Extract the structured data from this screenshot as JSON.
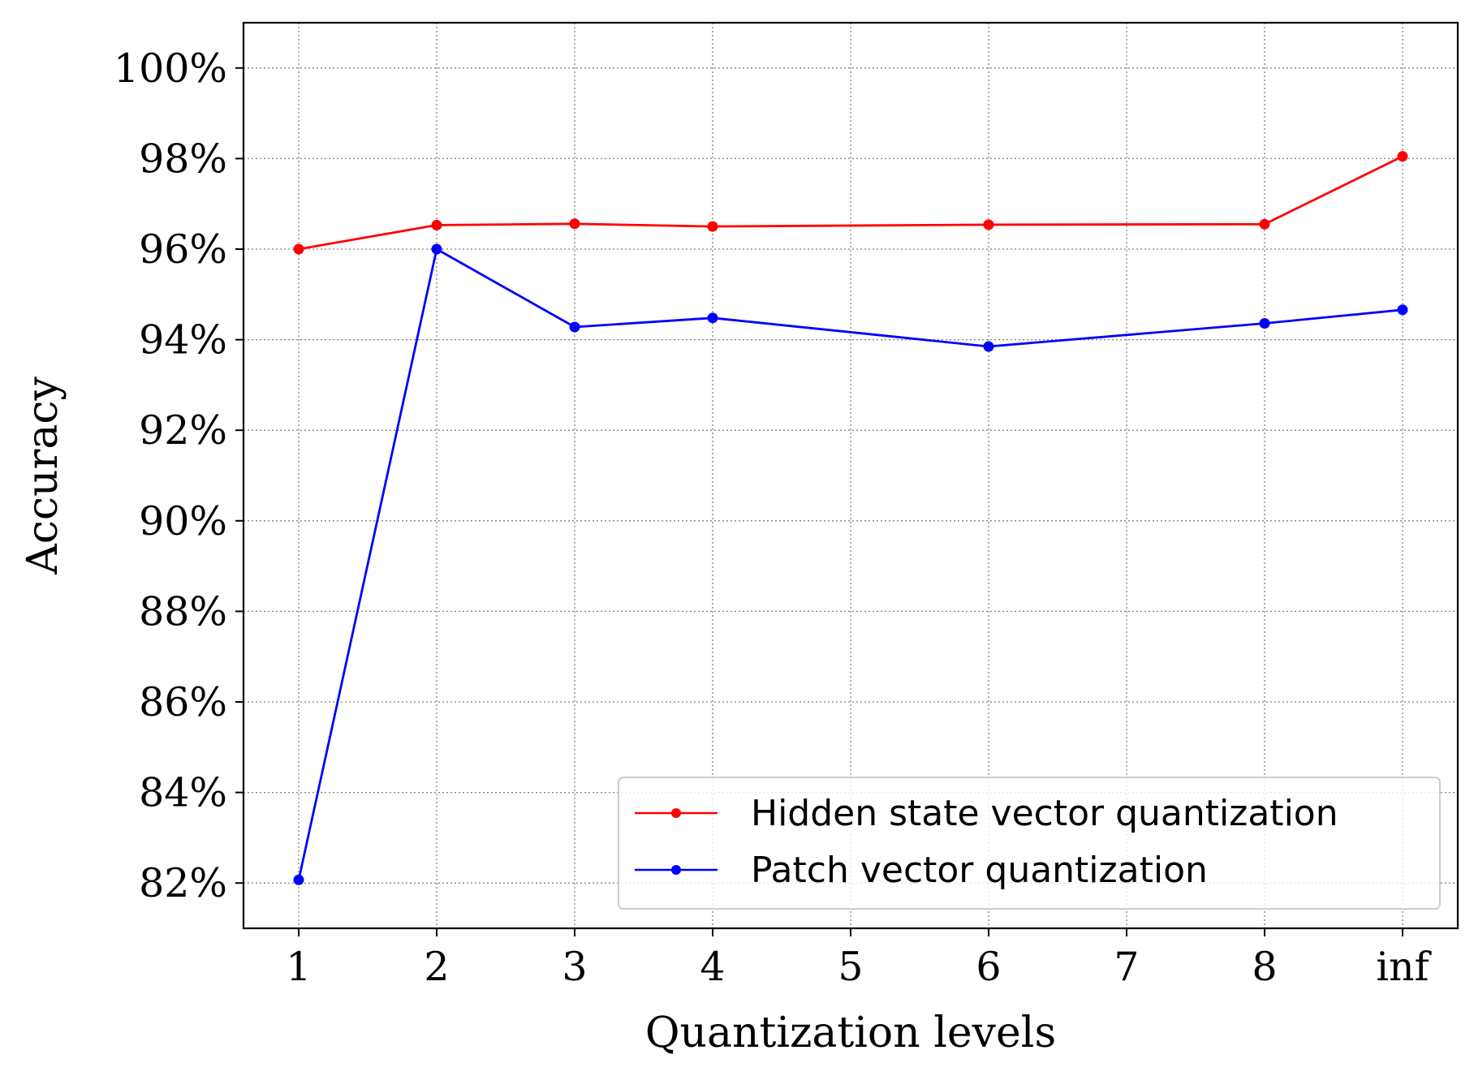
{
  "chart_data": {
    "type": "line",
    "xlabel": "Quantization levels",
    "ylabel": "Accuracy",
    "x_ticks": [
      "1",
      "2",
      "3",
      "4",
      "5",
      "6",
      "7",
      "8",
      "inf"
    ],
    "y_ticks": [
      "82%",
      "84%",
      "86%",
      "88%",
      "90%",
      "92%",
      "94%",
      "96%",
      "98%",
      "100%"
    ],
    "ylim": [
      81,
      101
    ],
    "xlim": [
      0.6,
      9.4
    ],
    "grid": true,
    "legend_position": "lower-right",
    "series": [
      {
        "name": "Hidden state vector quantization",
        "color": "#ff0000",
        "x": [
          1,
          2,
          3,
          4,
          6,
          8,
          "inf"
        ],
        "values": [
          96.0,
          96.53,
          96.56,
          96.5,
          96.54,
          96.55,
          98.05
        ]
      },
      {
        "name": "Patch vector quantization",
        "color": "#0000ff",
        "x": [
          1,
          2,
          3,
          4,
          6,
          8,
          "inf"
        ],
        "values": [
          82.07,
          96.0,
          94.28,
          94.48,
          93.85,
          94.36,
          94.66
        ]
      }
    ]
  }
}
